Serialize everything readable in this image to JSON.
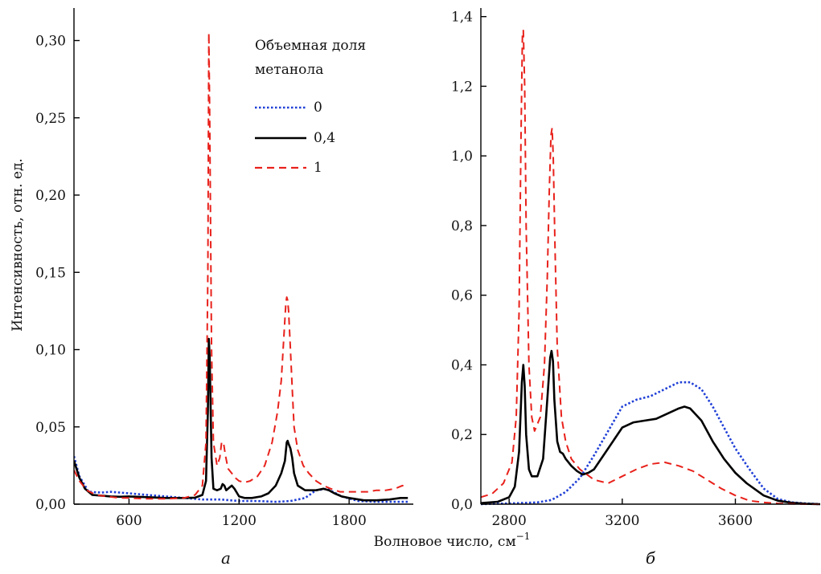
{
  "figure": {
    "shared_xlabel": "Волновое число, см",
    "shared_xlabel_sup": "−1"
  },
  "legend": {
    "title_line1": "Объемная доля",
    "title_line2": "метанола",
    "entries": [
      {
        "label": "0",
        "color": "#1f3fd6",
        "style": "dotted"
      },
      {
        "label": "0,4",
        "color": "#000000",
        "style": "solid"
      },
      {
        "label": "1",
        "color": "#e8211b",
        "style": "dashed"
      }
    ]
  },
  "chart_data": [
    {
      "type": "line",
      "panel_label": "а",
      "title": "",
      "ylabel": "Интенсивность, отн. ед.",
      "xlim": [
        300,
        2150
      ],
      "ylim": [
        0,
        0.32
      ],
      "xticks": [
        600,
        1200,
        1800
      ],
      "xtick_labels": [
        "600",
        "1200",
        "1800"
      ],
      "yticks": [
        0,
        0.05,
        0.1,
        0.15,
        0.2,
        0.25,
        0.3
      ],
      "ytick_labels": [
        "0,00",
        "0,05",
        "0,10",
        "0,15",
        "0,20",
        "0,25",
        "0,30"
      ],
      "grid": false,
      "legend_position": "top-right",
      "series": [
        {
          "name": "0",
          "color": "#1f3fd6",
          "style": "dotted",
          "x": [
            300,
            330,
            380,
            450,
            500,
            600,
            700,
            800,
            900,
            1000,
            1100,
            1200,
            1300,
            1400,
            1480,
            1560,
            1620,
            1680,
            1760,
            1850,
            1950,
            2050,
            2120
          ],
          "y": [
            0.031,
            0.018,
            0.008,
            0.0075,
            0.008,
            0.007,
            0.006,
            0.005,
            0.004,
            0.003,
            0.003,
            0.002,
            0.002,
            0.0015,
            0.002,
            0.004,
            0.009,
            0.01,
            0.005,
            0.002,
            0.0015,
            0.0015,
            0.0015
          ]
        },
        {
          "name": "0,4",
          "color": "#000000",
          "style": "solid",
          "x": [
            300,
            330,
            360,
            400,
            450,
            500,
            550,
            600,
            700,
            800,
            900,
            960,
            1000,
            1020,
            1030,
            1035,
            1040,
            1050,
            1060,
            1080,
            1100,
            1110,
            1120,
            1130,
            1140,
            1160,
            1175,
            1190,
            1200,
            1230,
            1270,
            1320,
            1360,
            1400,
            1430,
            1450,
            1460,
            1465,
            1470,
            1480,
            1490,
            1500,
            1520,
            1560,
            1620,
            1660,
            1690,
            1720,
            1760,
            1800,
            1880,
            1950,
            2020,
            2080,
            2120
          ],
          "y": [
            0.028,
            0.017,
            0.01,
            0.006,
            0.0055,
            0.005,
            0.0048,
            0.005,
            0.0045,
            0.004,
            0.004,
            0.0042,
            0.006,
            0.015,
            0.06,
            0.107,
            0.095,
            0.03,
            0.01,
            0.009,
            0.01,
            0.013,
            0.012,
            0.009,
            0.01,
            0.012,
            0.01,
            0.007,
            0.005,
            0.004,
            0.004,
            0.005,
            0.007,
            0.012,
            0.02,
            0.028,
            0.04,
            0.041,
            0.039,
            0.036,
            0.03,
            0.02,
            0.012,
            0.009,
            0.009,
            0.01,
            0.009,
            0.007,
            0.005,
            0.004,
            0.0025,
            0.0025,
            0.003,
            0.004,
            0.004
          ]
        },
        {
          "name": "1",
          "color": "#e8211b",
          "style": "dashed",
          "x": [
            300,
            330,
            370,
            420,
            480,
            550,
            600,
            700,
            800,
            900,
            960,
            1000,
            1020,
            1030,
            1035,
            1040,
            1050,
            1060,
            1080,
            1095,
            1105,
            1115,
            1125,
            1140,
            1160,
            1180,
            1200,
            1230,
            1260,
            1300,
            1340,
            1380,
            1410,
            1430,
            1445,
            1455,
            1460,
            1465,
            1470,
            1480,
            1490,
            1500,
            1520,
            1550,
            1580,
            1620,
            1660,
            1700,
            1750,
            1800,
            1850,
            1900,
            1950,
            2000,
            2050,
            2070,
            2090,
            2120
          ],
          "y": [
            0.022,
            0.015,
            0.009,
            0.006,
            0.005,
            0.004,
            0.004,
            0.0035,
            0.0035,
            0.004,
            0.006,
            0.012,
            0.04,
            0.15,
            0.305,
            0.25,
            0.1,
            0.04,
            0.025,
            0.03,
            0.04,
            0.04,
            0.032,
            0.023,
            0.02,
            0.017,
            0.015,
            0.014,
            0.015,
            0.018,
            0.025,
            0.04,
            0.06,
            0.08,
            0.11,
            0.13,
            0.134,
            0.132,
            0.125,
            0.1,
            0.075,
            0.05,
            0.035,
            0.025,
            0.02,
            0.015,
            0.012,
            0.01,
            0.008,
            0.008,
            0.008,
            0.008,
            0.009,
            0.009,
            0.01,
            0.011,
            0.012,
            0.011
          ]
        }
      ]
    },
    {
      "type": "line",
      "panel_label": "б",
      "title": "",
      "ylabel": "",
      "xlim": [
        2700,
        3900
      ],
      "ylim": [
        0,
        1.42
      ],
      "xticks": [
        2800,
        3200,
        3600
      ],
      "xtick_labels": [
        "2800",
        "3200",
        "3600"
      ],
      "yticks": [
        0,
        0.2,
        0.4,
        0.6,
        0.8,
        1.0,
        1.2,
        1.4
      ],
      "ytick_labels": [
        "0,0",
        "0,2",
        "0,4",
        "0,6",
        "0,8",
        "1,0",
        "1,2",
        "1,4"
      ],
      "grid": false,
      "series": [
        {
          "name": "0",
          "color": "#1f3fd6",
          "style": "dotted",
          "x": [
            2700,
            2800,
            2900,
            2950,
            3000,
            3050,
            3100,
            3150,
            3200,
            3250,
            3300,
            3350,
            3400,
            3440,
            3480,
            3520,
            3560,
            3600,
            3650,
            3700,
            3750,
            3800,
            3850,
            3900
          ],
          "y": [
            0,
            0.002,
            0.005,
            0.012,
            0.035,
            0.075,
            0.14,
            0.21,
            0.28,
            0.3,
            0.31,
            0.33,
            0.35,
            0.35,
            0.33,
            0.28,
            0.22,
            0.16,
            0.1,
            0.045,
            0.015,
            0.005,
            0.002,
            0
          ]
        },
        {
          "name": "0,4",
          "color": "#000000",
          "style": "solid",
          "x": [
            2700,
            2760,
            2800,
            2820,
            2835,
            2845,
            2850,
            2855,
            2860,
            2870,
            2880,
            2900,
            2920,
            2935,
            2945,
            2950,
            2955,
            2960,
            2970,
            2980,
            2990,
            3000,
            3020,
            3040,
            3060,
            3080,
            3100,
            3150,
            3200,
            3240,
            3280,
            3320,
            3360,
            3400,
            3420,
            3440,
            3480,
            3520,
            3560,
            3600,
            3640,
            3700,
            3750,
            3800,
            3850,
            3900
          ],
          "y": [
            0.003,
            0.007,
            0.02,
            0.05,
            0.15,
            0.35,
            0.4,
            0.34,
            0.2,
            0.1,
            0.08,
            0.08,
            0.13,
            0.3,
            0.42,
            0.44,
            0.41,
            0.3,
            0.18,
            0.15,
            0.145,
            0.13,
            0.11,
            0.095,
            0.085,
            0.09,
            0.1,
            0.16,
            0.22,
            0.235,
            0.24,
            0.245,
            0.26,
            0.275,
            0.28,
            0.275,
            0.24,
            0.18,
            0.13,
            0.09,
            0.06,
            0.025,
            0.01,
            0.004,
            0.001,
            0
          ]
        },
        {
          "name": "1",
          "color": "#e8211b",
          "style": "dashed",
          "x": [
            2700,
            2740,
            2780,
            2810,
            2825,
            2835,
            2842,
            2847,
            2850,
            2855,
            2860,
            2870,
            2880,
            2890,
            2910,
            2925,
            2935,
            2942,
            2948,
            2952,
            2956,
            2962,
            2970,
            2985,
            3000,
            3020,
            3050,
            3100,
            3150,
            3200,
            3250,
            3300,
            3350,
            3400,
            3450,
            3500,
            3550,
            3600,
            3650,
            3700,
            3750,
            3800,
            3850,
            3900
          ],
          "y": [
            0.02,
            0.03,
            0.06,
            0.12,
            0.25,
            0.55,
            1.05,
            1.35,
            1.36,
            1.2,
            0.8,
            0.4,
            0.25,
            0.21,
            0.25,
            0.4,
            0.65,
            0.9,
            1.06,
            1.08,
            1.0,
            0.75,
            0.45,
            0.25,
            0.18,
            0.13,
            0.1,
            0.07,
            0.06,
            0.08,
            0.1,
            0.115,
            0.12,
            0.11,
            0.095,
            0.07,
            0.045,
            0.025,
            0.01,
            0.005,
            0.002,
            0.001,
            0,
            0
          ]
        }
      ]
    }
  ]
}
